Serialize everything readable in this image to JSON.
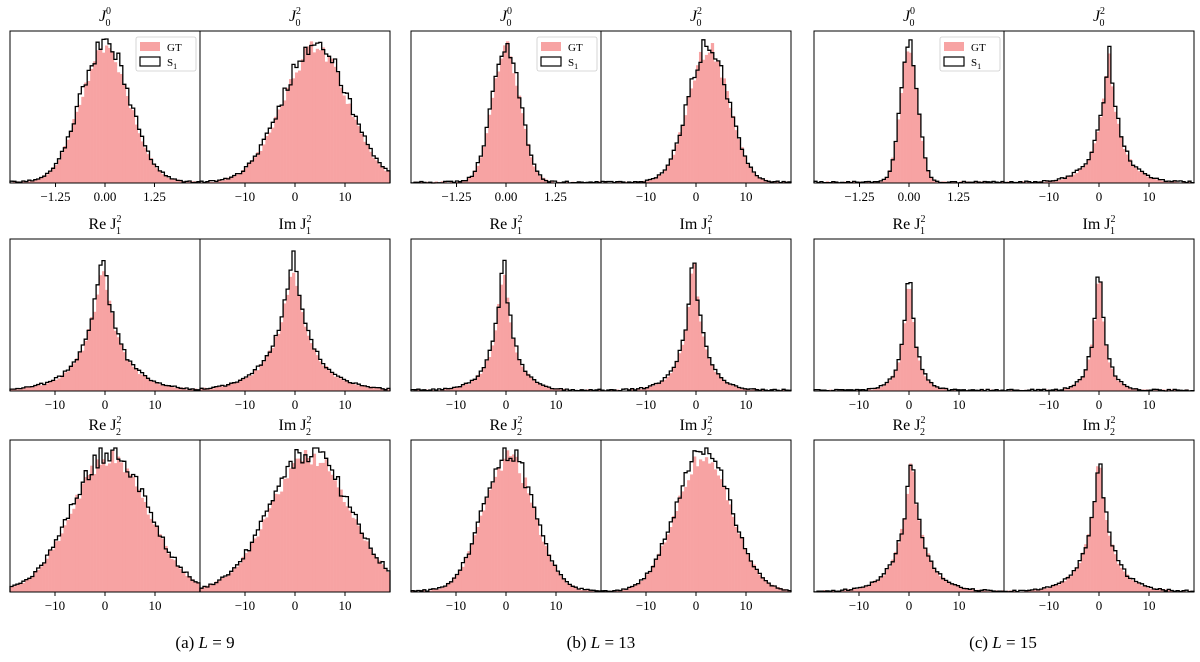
{
  "figure": {
    "legend": {
      "gt_label": "GT",
      "s_label": "S",
      "s_sub": "1"
    },
    "colors": {
      "gt_fill": "#f7a3a3",
      "s_line": "#000000",
      "axis": "#000000"
    }
  },
  "captions": [
    {
      "prefix": "(a) ",
      "var": "L",
      "rest": " = 9"
    },
    {
      "prefix": "(b) ",
      "var": "L",
      "rest": " = 13"
    },
    {
      "prefix": "(c) ",
      "var": "L",
      "rest": " = 15"
    }
  ],
  "chart_data": [
    {
      "type": "histogram",
      "figure": "a",
      "L": 9,
      "panels": [
        {
          "title": "J_0^0",
          "xlim": [
            -2.4,
            2.4
          ],
          "ticks": [
            -1.25,
            0,
            1.25
          ],
          "tick_labels": [
            "−1.25",
            "0.00",
            "1.25"
          ],
          "shape": "gauss",
          "center": 0.0,
          "width": 0.62,
          "peak": 1.0,
          "legend": true
        },
        {
          "title": "J_0^2",
          "xlim": [
            -19,
            19
          ],
          "ticks": [
            -10,
            0,
            10
          ],
          "tick_labels": [
            "−10",
            "0",
            "10"
          ],
          "shape": "gauss",
          "center": 4.0,
          "width": 6.5,
          "peak": 1.0
        },
        {
          "title": "Re J_1^2",
          "xlim": [
            -19,
            19
          ],
          "ticks": [
            -10,
            0,
            10
          ],
          "tick_labels": [
            "−10",
            "0",
            "10"
          ],
          "shape": "laplace",
          "center": -0.5,
          "width": 4.5,
          "peak": 1.0
        },
        {
          "title": "Im J_1^2",
          "xlim": [
            -19,
            19
          ],
          "ticks": [
            -10,
            0,
            10
          ],
          "tick_labels": [
            "−10",
            "0",
            "10"
          ],
          "shape": "laplace",
          "center": -0.5,
          "width": 4.8,
          "peak": 1.0
        },
        {
          "title": "Re J_2^2",
          "xlim": [
            -19,
            19
          ],
          "ticks": [
            -10,
            0,
            10
          ],
          "tick_labels": [
            "−10",
            "0",
            "10"
          ],
          "shape": "gauss",
          "center": 1.0,
          "width": 7.5,
          "peak": 1.0
        },
        {
          "title": "Im J_2^2",
          "xlim": [
            -19,
            19
          ],
          "ticks": [
            -10,
            0,
            10
          ],
          "tick_labels": [
            "−10",
            "0",
            "10"
          ],
          "shape": "gauss",
          "center": 3.0,
          "width": 8.0,
          "peak": 1.0
        }
      ]
    },
    {
      "type": "histogram",
      "figure": "b",
      "L": 13,
      "panels": [
        {
          "title": "J_0^0",
          "xlim": [
            -2.4,
            2.4
          ],
          "ticks": [
            -1.25,
            0,
            1.25
          ],
          "tick_labels": [
            "−1.25",
            "0.00",
            "1.25"
          ],
          "shape": "gauss",
          "center": 0.0,
          "width": 0.35,
          "peak": 1.0,
          "legend": true
        },
        {
          "title": "J_0^2",
          "xlim": [
            -19,
            19
          ],
          "ticks": [
            -10,
            0,
            10
          ],
          "tick_labels": [
            "−10",
            "0",
            "10"
          ],
          "shape": "gauss",
          "center": 2.5,
          "width": 4.0,
          "peak": 1.0
        },
        {
          "title": "Re J_1^2",
          "xlim": [
            -19,
            19
          ],
          "ticks": [
            -10,
            0,
            10
          ],
          "tick_labels": [
            "−10",
            "0",
            "10"
          ],
          "shape": "laplace",
          "center": -0.5,
          "width": 2.8,
          "peak": 1.0
        },
        {
          "title": "Im J_1^2",
          "xlim": [
            -19,
            19
          ],
          "ticks": [
            -10,
            0,
            10
          ],
          "tick_labels": [
            "−10",
            "0",
            "10"
          ],
          "shape": "laplace",
          "center": -0.5,
          "width": 2.8,
          "peak": 1.0
        },
        {
          "title": "Re J_2^2",
          "xlim": [
            -19,
            19
          ],
          "ticks": [
            -10,
            0,
            10
          ],
          "tick_labels": [
            "−10",
            "0",
            "10"
          ],
          "shape": "gauss",
          "center": 0.5,
          "width": 5.0,
          "peak": 1.0
        },
        {
          "title": "Im J_2^2",
          "xlim": [
            -19,
            19
          ],
          "ticks": [
            -10,
            0,
            10
          ],
          "tick_labels": [
            "−10",
            "0",
            "10"
          ],
          "shape": "gauss",
          "center": 1.5,
          "width": 5.5,
          "peak": 1.0
        }
      ]
    },
    {
      "type": "histogram",
      "figure": "c",
      "L": 15,
      "panels": [
        {
          "title": "J_0^0",
          "xlim": [
            -2.4,
            2.4
          ],
          "ticks": [
            -1.25,
            0,
            1.25
          ],
          "tick_labels": [
            "−1.25",
            "0.00",
            "1.25"
          ],
          "shape": "gauss",
          "center": 0.0,
          "width": 0.22,
          "peak": 1.0,
          "legend": true
        },
        {
          "title": "J_0^2",
          "xlim": [
            -19,
            19
          ],
          "ticks": [
            -10,
            0,
            10
          ],
          "tick_labels": [
            "−10",
            "0",
            "10"
          ],
          "shape": "laplace",
          "center": 2.0,
          "width": 3.0,
          "peak": 1.0
        },
        {
          "title": "Re J_1^2",
          "xlim": [
            -19,
            19
          ],
          "ticks": [
            -10,
            0,
            10
          ],
          "tick_labels": [
            "−10",
            "0",
            "10"
          ],
          "shape": "laplace",
          "center": 0.0,
          "width": 1.8,
          "peak": 1.0
        },
        {
          "title": "Im J_1^2",
          "xlim": [
            -19,
            19
          ],
          "ticks": [
            -10,
            0,
            10
          ],
          "tick_labels": [
            "−10",
            "0",
            "10"
          ],
          "shape": "laplace",
          "center": 0.0,
          "width": 1.8,
          "peak": 1.0
        },
        {
          "title": "Re J_2^2",
          "xlim": [
            -19,
            19
          ],
          "ticks": [
            -10,
            0,
            10
          ],
          "tick_labels": [
            "−10",
            "0",
            "10"
          ],
          "shape": "laplace",
          "center": 0.5,
          "width": 3.3,
          "peak": 1.0
        },
        {
          "title": "Im J_2^2",
          "xlim": [
            -19,
            19
          ],
          "ticks": [
            -10,
            0,
            10
          ],
          "tick_labels": [
            "−10",
            "0",
            "10"
          ],
          "shape": "laplace",
          "center": 0.0,
          "width": 3.3,
          "peak": 1.0
        }
      ]
    }
  ]
}
